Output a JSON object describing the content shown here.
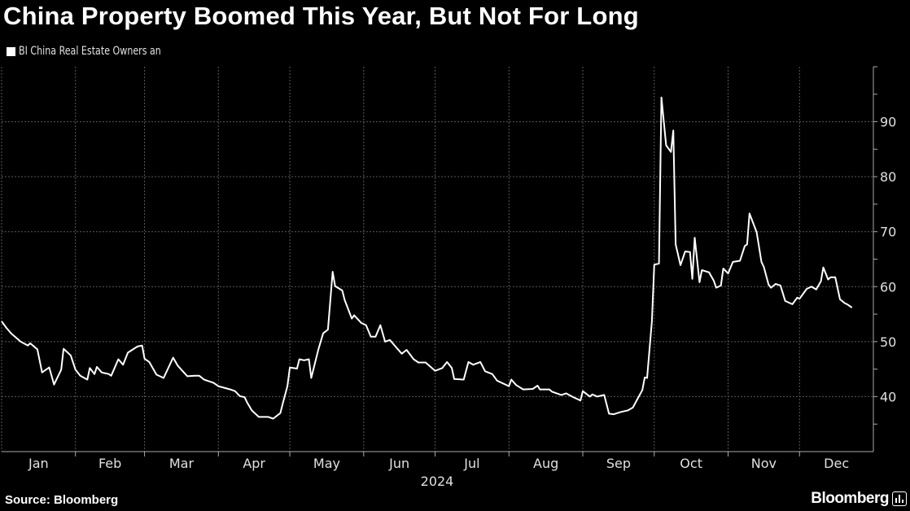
{
  "title": "China Property Boomed This Year, But Not For Long",
  "source": "Source: Bloomberg",
  "logo": "Bloomberg",
  "colors": {
    "background": "#000000",
    "line": "#ffffff",
    "grid": "#555555",
    "text": "#e0e0e0"
  },
  "chart_data": {
    "type": "line",
    "title": "China Property Boomed This Year, But Not For Long",
    "xlabel": "2024",
    "ylabel": "",
    "ylim": [
      30,
      100
    ],
    "xlim": [
      "2024-01-01",
      "2025-01-01"
    ],
    "y_ticks": [
      40,
      50,
      60,
      70,
      80,
      90
    ],
    "y_axis_side": "right",
    "x_tick_labels": [
      "Jan",
      "Feb",
      "Mar",
      "Apr",
      "May",
      "Jun",
      "Jul",
      "Aug",
      "Sep",
      "Oct",
      "Nov",
      "Dec"
    ],
    "grid": true,
    "legend_position": "top-left",
    "series": [
      {
        "name": "BI China Real Estate Owners an",
        "color": "#ffffff",
        "x": [
          "2024-01-01",
          "2024-01-03",
          "2024-01-05",
          "2024-01-09",
          "2024-01-12",
          "2024-01-13",
          "2024-01-16",
          "2024-01-18",
          "2024-01-21",
          "2024-01-23",
          "2024-01-26",
          "2024-01-27",
          "2024-01-30",
          "2024-02-01",
          "2024-02-03",
          "2024-02-06",
          "2024-02-07",
          "2024-02-09",
          "2024-02-10",
          "2024-02-12",
          "2024-02-15",
          "2024-02-16",
          "2024-02-19",
          "2024-02-21",
          "2024-02-23",
          "2024-02-27",
          "2024-02-29",
          "2024-03-01",
          "2024-03-03",
          "2024-03-06",
          "2024-03-09",
          "2024-03-13",
          "2024-03-15",
          "2024-03-19",
          "2024-03-22",
          "2024-03-24",
          "2024-03-26",
          "2024-03-30",
          "2024-04-01",
          "2024-04-06",
          "2024-04-08",
          "2024-04-10",
          "2024-04-12",
          "2024-04-13",
          "2024-04-15",
          "2024-04-18",
          "2024-04-22",
          "2024-04-24",
          "2024-04-27",
          "2024-04-28",
          "2024-04-30",
          "2024-05-01",
          "2024-05-04",
          "2024-05-05",
          "2024-05-07",
          "2024-05-09",
          "2024-05-10",
          "2024-05-13",
          "2024-05-15",
          "2024-05-17",
          "2024-05-19",
          "2024-05-20",
          "2024-05-23",
          "2024-05-24",
          "2024-05-27",
          "2024-05-28",
          "2024-05-31",
          "2024-06-02",
          "2024-06-04",
          "2024-06-06",
          "2024-06-08",
          "2024-06-10",
          "2024-06-12",
          "2024-06-14",
          "2024-06-17",
          "2024-06-19",
          "2024-06-22",
          "2024-06-24",
          "2024-06-27",
          "2024-07-01",
          "2024-07-04",
          "2024-07-06",
          "2024-07-08",
          "2024-07-09",
          "2024-07-13",
          "2024-07-15",
          "2024-07-17",
          "2024-07-20",
          "2024-07-22",
          "2024-07-25",
          "2024-07-27",
          "2024-08-01",
          "2024-08-02",
          "2024-08-04",
          "2024-08-07",
          "2024-08-11",
          "2024-08-13",
          "2024-08-14",
          "2024-08-18",
          "2024-08-19",
          "2024-08-23",
          "2024-08-25",
          "2024-08-28",
          "2024-08-31",
          "2024-09-01",
          "2024-09-04",
          "2024-09-05",
          "2024-09-07",
          "2024-09-10",
          "2024-09-12",
          "2024-09-14",
          "2024-09-17",
          "2024-09-20",
          "2024-09-22",
          "2024-09-24",
          "2024-09-26",
          "2024-09-27",
          "2024-09-28",
          "2024-09-30",
          "2024-10-01",
          "2024-10-03",
          "2024-10-04",
          "2024-10-06",
          "2024-10-08",
          "2024-10-09",
          "2024-10-10",
          "2024-10-12",
          "2024-10-14",
          "2024-10-16",
          "2024-10-17",
          "2024-10-18",
          "2024-10-20",
          "2024-10-21",
          "2024-10-24",
          "2024-10-26",
          "2024-10-27",
          "2024-10-29",
          "2024-10-30",
          "2024-11-01",
          "2024-11-03",
          "2024-11-06",
          "2024-11-08",
          "2024-11-09",
          "2024-11-10",
          "2024-11-13",
          "2024-11-15",
          "2024-11-16",
          "2024-11-18",
          "2024-11-19",
          "2024-11-21",
          "2024-11-23",
          "2024-11-25",
          "2024-11-28",
          "2024-11-30",
          "2024-12-01",
          "2024-12-04",
          "2024-12-06",
          "2024-12-08",
          "2024-12-10",
          "2024-12-11",
          "2024-12-13",
          "2024-12-14",
          "2024-12-16",
          "2024-12-18",
          "2024-12-20",
          "2024-12-21",
          "2024-12-23"
        ],
        "values": [
          53.7,
          52.5,
          51.5,
          50.0,
          49.3,
          49.7,
          48.6,
          44.4,
          45.3,
          42.2,
          44.9,
          48.7,
          47.5,
          44.9,
          43.8,
          43.1,
          45.2,
          44.1,
          45.4,
          44.4,
          44.1,
          43.8,
          46.8,
          45.8,
          48.0,
          49.1,
          49.3,
          46.9,
          46.3,
          44.0,
          43.4,
          47.1,
          45.6,
          43.7,
          43.8,
          43.8,
          43.1,
          42.5,
          41.9,
          41.3,
          41.0,
          40.1,
          39.9,
          39.0,
          37.5,
          36.3,
          36.3,
          36.0,
          37.0,
          38.7,
          41.9,
          45.3,
          45.1,
          46.8,
          46.6,
          46.8,
          43.4,
          48.6,
          51.5,
          52.2,
          62.7,
          60.1,
          59.3,
          57.6,
          54.2,
          54.8,
          53.4,
          53.0,
          50.9,
          50.9,
          53.0,
          50.0,
          50.3,
          49.3,
          47.8,
          48.5,
          46.8,
          46.2,
          46.2,
          44.7,
          45.2,
          46.3,
          45.2,
          43.2,
          43.1,
          46.3,
          45.8,
          46.3,
          44.6,
          44.1,
          42.9,
          41.9,
          43.1,
          42.1,
          41.3,
          41.4,
          42.0,
          41.3,
          41.3,
          40.9,
          40.3,
          40.6,
          39.9,
          39.3,
          41.0,
          40.0,
          40.4,
          40.0,
          40.3,
          36.9,
          36.8,
          37.2,
          37.5,
          38.0,
          39.6,
          41.2,
          43.5,
          43.4,
          53.7,
          64.0,
          64.2,
          94.4,
          85.7,
          84.5,
          88.4,
          67.7,
          63.9,
          66.4,
          66.3,
          61.4,
          68.9,
          60.8,
          63.0,
          62.6,
          61.1,
          59.8,
          60.2,
          63.3,
          62.4,
          64.5,
          64.7,
          67.4,
          67.7,
          73.3,
          69.9,
          64.5,
          63.6,
          60.4,
          59.8,
          60.5,
          60.2,
          57.4,
          56.8,
          58.0,
          57.8,
          59.6,
          60.0,
          59.5,
          61.0,
          63.5,
          61.3,
          61.7,
          61.7,
          57.7,
          57.0,
          56.8,
          56.2
        ]
      }
    ]
  }
}
